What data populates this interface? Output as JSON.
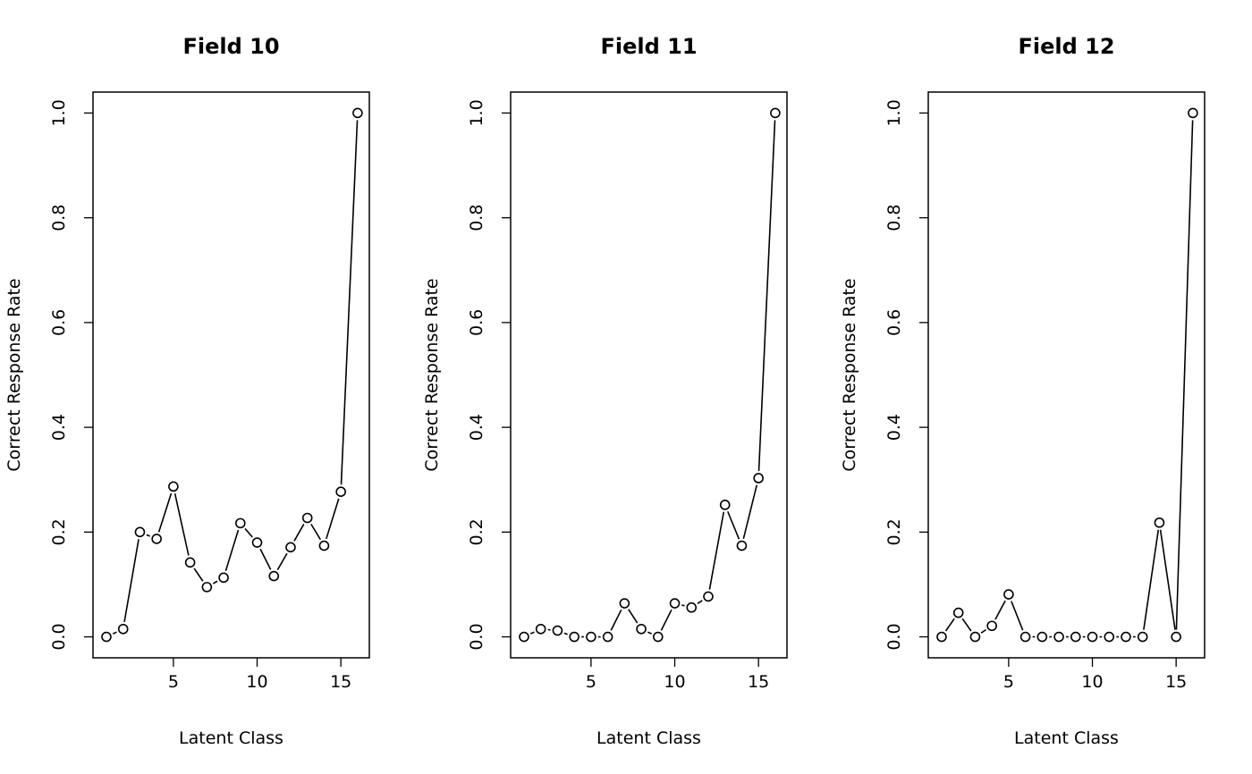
{
  "chart_data": [
    {
      "type": "line",
      "title": "Field 10",
      "xlabel": "Latent Class",
      "ylabel": "Correct Response Rate",
      "x": [
        1,
        2,
        3,
        4,
        5,
        6,
        7,
        8,
        9,
        10,
        11,
        12,
        13,
        14,
        15,
        16
      ],
      "values": [
        0.0,
        0.015,
        0.2,
        0.187,
        0.287,
        0.142,
        0.095,
        0.113,
        0.217,
        0.18,
        0.116,
        0.171,
        0.227,
        0.174,
        0.277,
        1.0
      ],
      "xlim": [
        0.2,
        16.7
      ],
      "ylim": [
        -0.04,
        1.04
      ],
      "xticks": [
        5,
        10,
        15
      ],
      "yticks": [
        0.0,
        0.2,
        0.4,
        0.6,
        0.8,
        1.0
      ],
      "xtick_labels": [
        "5",
        "10",
        "15"
      ],
      "ytick_labels": [
        "0.0",
        "0.2",
        "0.4",
        "0.6",
        "0.8",
        "1.0"
      ],
      "marker": "open-circle",
      "color": "#000000",
      "grid": false
    },
    {
      "type": "line",
      "title": "Field 11",
      "xlabel": "Latent Class",
      "ylabel": "Correct Response Rate",
      "x": [
        1,
        2,
        3,
        4,
        5,
        6,
        7,
        8,
        9,
        10,
        11,
        12,
        13,
        14,
        15,
        16
      ],
      "values": [
        0.0,
        0.015,
        0.012,
        0.0,
        0.0,
        0.0,
        0.064,
        0.015,
        0.0,
        0.064,
        0.056,
        0.077,
        0.252,
        0.174,
        0.303,
        1.0
      ],
      "xlim": [
        0.2,
        16.7
      ],
      "ylim": [
        -0.04,
        1.04
      ],
      "xticks": [
        5,
        10,
        15
      ],
      "yticks": [
        0.0,
        0.2,
        0.4,
        0.6,
        0.8,
        1.0
      ],
      "xtick_labels": [
        "5",
        "10",
        "15"
      ],
      "ytick_labels": [
        "0.0",
        "0.2",
        "0.4",
        "0.6",
        "0.8",
        "1.0"
      ],
      "marker": "open-circle",
      "color": "#000000",
      "grid": false
    },
    {
      "type": "line",
      "title": "Field 12",
      "xlabel": "Latent Class",
      "ylabel": "Correct Response Rate",
      "x": [
        1,
        2,
        3,
        4,
        5,
        6,
        7,
        8,
        9,
        10,
        11,
        12,
        13,
        14,
        15,
        16
      ],
      "values": [
        0.0,
        0.046,
        0.0,
        0.021,
        0.081,
        0.0,
        0.0,
        0.0,
        0.0,
        0.0,
        0.0,
        0.0,
        0.0,
        0.218,
        0.0,
        1.0
      ],
      "xlim": [
        0.2,
        16.7
      ],
      "ylim": [
        -0.04,
        1.04
      ],
      "xticks": [
        5,
        10,
        15
      ],
      "yticks": [
        0.0,
        0.2,
        0.4,
        0.6,
        0.8,
        1.0
      ],
      "xtick_labels": [
        "5",
        "10",
        "15"
      ],
      "ytick_labels": [
        "0.0",
        "0.2",
        "0.4",
        "0.6",
        "0.8",
        "1.0"
      ],
      "marker": "open-circle",
      "color": "#000000",
      "grid": false
    }
  ]
}
